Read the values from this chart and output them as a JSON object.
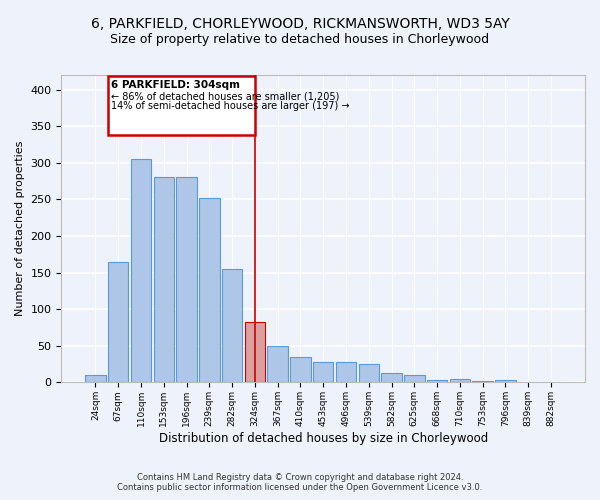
{
  "title_line1": "6, PARKFIELD, CHORLEYWOOD, RICKMANSWORTH, WD3 5AY",
  "title_line2": "Size of property relative to detached houses in Chorleywood",
  "xlabel": "Distribution of detached houses by size in Chorleywood",
  "ylabel": "Number of detached properties",
  "categories": [
    "24sqm",
    "67sqm",
    "110sqm",
    "153sqm",
    "196sqm",
    "239sqm",
    "282sqm",
    "324sqm",
    "367sqm",
    "410sqm",
    "453sqm",
    "496sqm",
    "539sqm",
    "582sqm",
    "625sqm",
    "668sqm",
    "710sqm",
    "753sqm",
    "796sqm",
    "839sqm",
    "882sqm"
  ],
  "values": [
    10,
    165,
    305,
    280,
    280,
    252,
    155,
    83,
    50,
    35,
    28,
    28,
    25,
    13,
    10,
    3,
    5,
    2,
    3,
    1,
    1
  ],
  "bar_color": "#aec6e8",
  "bar_edge_color": "#5b9bd5",
  "highlight_bar_index": 7,
  "vline_color": "#cc0000",
  "highlight_bar_color": "#d9a0a0",
  "highlight_bar_edge": "#cc0000",
  "annotation_title": "6 PARKFIELD: 304sqm",
  "annotation_line1": "← 86% of detached houses are smaller (1,205)",
  "annotation_line2": "14% of semi-detached houses are larger (197) →",
  "annotation_box_color": "#cc0000",
  "footer_line1": "Contains HM Land Registry data © Crown copyright and database right 2024.",
  "footer_line2": "Contains public sector information licensed under the Open Government Licence v3.0.",
  "ylim": [
    0,
    420
  ],
  "yticks": [
    0,
    50,
    100,
    150,
    200,
    250,
    300,
    350,
    400
  ],
  "background_color": "#eef2fb",
  "grid_color": "#ffffff",
  "title_fontsize": 10,
  "subtitle_fontsize": 9
}
